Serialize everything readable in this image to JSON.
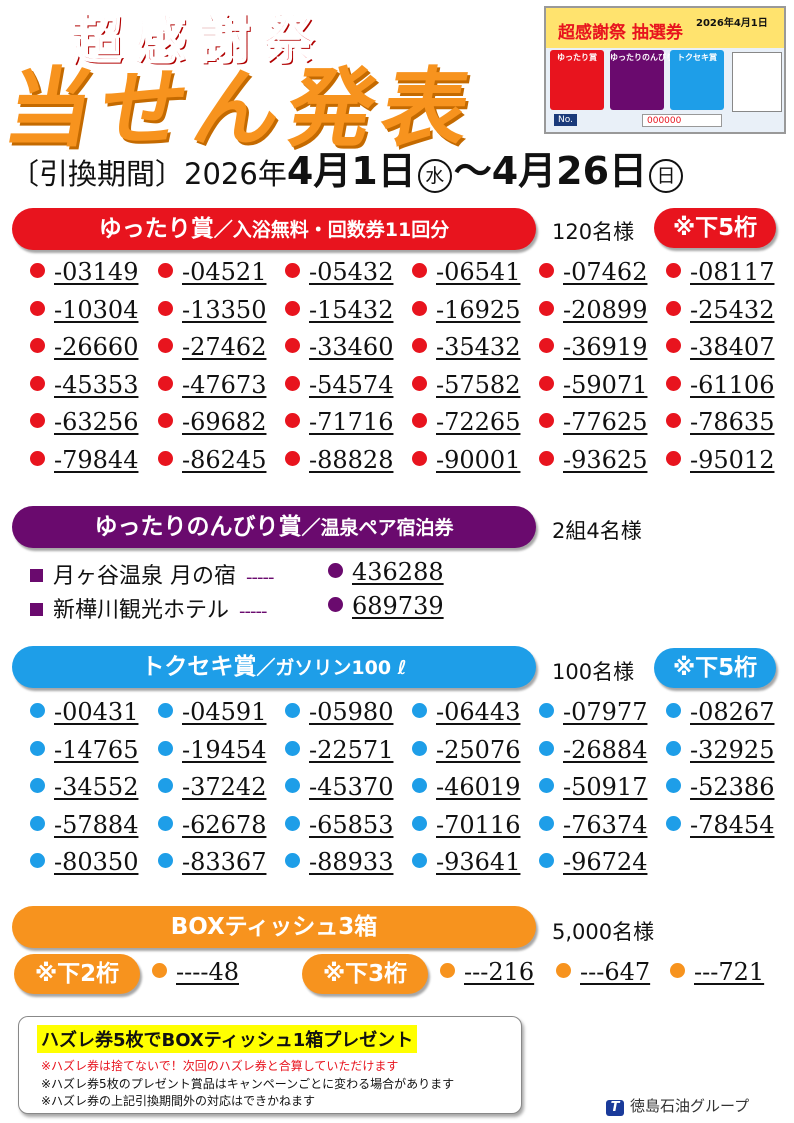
{
  "header": {
    "title_top": "超感謝祭",
    "title_main": "当せん発表",
    "period_label": "〔引換期間〕",
    "period_year": "2026年",
    "period_start": "4月1日",
    "period_start_day": "水",
    "period_sep": "〜",
    "period_end": "4月26日",
    "period_end_day": "日"
  },
  "thumbnail": {
    "title": "超感謝祭 抽選券",
    "date": "2026年4月1日",
    "labels": [
      "ゆったり賞",
      "ゆったりのんびり賞",
      "トクセキ賞"
    ],
    "no_label": "No.",
    "no_value": "000000"
  },
  "prizes": {
    "yuttari": {
      "name": "ゆったり賞",
      "detail": "／入浴無料・回数券11回分",
      "count": "120名様",
      "digits": "※下5桁",
      "numbers": [
        "-03149",
        "-04521",
        "-05432",
        "-06541",
        "-07462",
        "-08117",
        "-10304",
        "-13350",
        "-15432",
        "-16925",
        "-20899",
        "-25432",
        "-26660",
        "-27462",
        "-33460",
        "-35432",
        "-36919",
        "-38407",
        "-45353",
        "-47673",
        "-54574",
        "-57582",
        "-59071",
        "-61106",
        "-63256",
        "-69682",
        "-71716",
        "-72265",
        "-77625",
        "-78635",
        "-79844",
        "-86245",
        "-88828",
        "-90001",
        "-93625",
        "-95012"
      ]
    },
    "nonbiri": {
      "name": "ゆったりのんびり賞",
      "detail": "／温泉ペア宿泊券",
      "count": "2組4名様",
      "hotels": [
        {
          "name": "月ヶ谷温泉 月の宿",
          "dash": "-----",
          "number": "436288"
        },
        {
          "name": "新樺川観光ホテル",
          "dash": "-----",
          "number": "689739"
        }
      ]
    },
    "tokuseki": {
      "name": "トクセキ賞",
      "detail": "／ガソリン100 ℓ",
      "count": "100名様",
      "digits": "※下5桁",
      "numbers": [
        "-00431",
        "-04591",
        "-05980",
        "-06443",
        "-07977",
        "-08267",
        "-14765",
        "-19454",
        "-22571",
        "-25076",
        "-26884",
        "-32925",
        "-34552",
        "-37242",
        "-45370",
        "-46019",
        "-50917",
        "-52386",
        "-57884",
        "-62678",
        "-65853",
        "-70116",
        "-76374",
        "-78454",
        "-80350",
        "-83367",
        "-88933",
        "-93641",
        "-96724"
      ]
    },
    "tissue": {
      "name": "BOXティッシュ3箱",
      "count": "5,000名様",
      "digits2": "※下2桁",
      "digits3": "※下3桁",
      "num2": "----48",
      "num3": [
        "---216",
        "---647",
        "---721"
      ]
    }
  },
  "notes": {
    "headline": "ハズレ券5枚でBOXティッシュ1箱プレゼント",
    "line1": "※ハズレ券は捨てないで！次回のハズレ券と合算していただけます",
    "line2": "※ハズレ券5枚のプレゼント賞品はキャンペーンごとに変わる場合があります",
    "line3": "※ハズレ券の上記引換期間外の対応はできかねます"
  },
  "footer": {
    "logo_mark": "T",
    "company": "徳島石油グループ"
  },
  "colors": {
    "red": "#e8141e",
    "purple": "#6a0a6e",
    "blue": "#1e9ee8",
    "orange": "#f7931e"
  }
}
